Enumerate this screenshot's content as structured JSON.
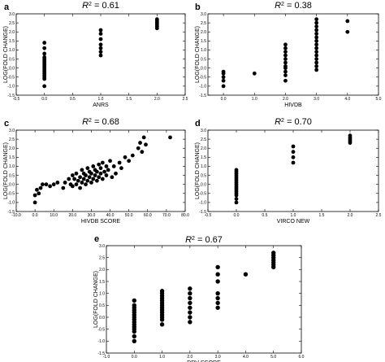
{
  "chart_data": [
    {
      "id": "a",
      "type": "scatter",
      "panel_label": "a",
      "title_prefix": "R",
      "title_exp": "2",
      "title_value": " = 0.61",
      "xlabel": "ANRS",
      "ylabel": "LOG(FOLD CHANGE)",
      "xlim": [
        -0.5,
        2.5
      ],
      "ylim": [
        -1.5,
        3.0
      ],
      "xticks": [
        -0.5,
        0.0,
        0.5,
        1.0,
        1.5,
        2.0,
        2.5
      ],
      "xtick_labels": [
        "-0.5",
        "0.0",
        "0.5",
        "1.0",
        "1.5",
        "2.0",
        "2.5"
      ],
      "yticks": [
        -1.5,
        -1.0,
        -0.5,
        0.0,
        0.5,
        1.0,
        1.5,
        2.0,
        2.5,
        3.0
      ],
      "ytick_labels": [
        "-1.5",
        "-1.0",
        "-0.5",
        "0.0",
        "0.5",
        "1.0",
        "1.5",
        "2.0",
        "2.5",
        "3.0"
      ],
      "points": [
        [
          0,
          -1.0
        ],
        [
          0,
          -0.6
        ],
        [
          0,
          -0.5
        ],
        [
          0,
          -0.4
        ],
        [
          0,
          -0.3
        ],
        [
          0,
          -0.2
        ],
        [
          0,
          -0.1
        ],
        [
          0,
          0.0
        ],
        [
          0,
          0.1
        ],
        [
          0,
          0.2
        ],
        [
          0,
          0.3
        ],
        [
          0,
          0.4
        ],
        [
          0,
          0.5
        ],
        [
          0,
          0.6
        ],
        [
          0,
          0.8
        ],
        [
          0,
          1.1
        ],
        [
          0,
          1.4
        ],
        [
          1,
          0.7
        ],
        [
          1,
          0.9
        ],
        [
          1,
          1.1
        ],
        [
          1,
          1.3
        ],
        [
          1,
          1.6
        ],
        [
          1,
          1.9
        ],
        [
          1,
          2.1
        ],
        [
          2,
          2.2
        ],
        [
          2,
          2.3
        ],
        [
          2,
          2.4
        ],
        [
          2,
          2.5
        ],
        [
          2,
          2.6
        ],
        [
          2,
          2.7
        ]
      ]
    },
    {
      "id": "b",
      "type": "scatter",
      "panel_label": "b",
      "title_prefix": "R",
      "title_exp": "2",
      "title_value": " = 0.38",
      "xlabel": "HIVDB",
      "ylabel": "LOG(FOLD CHANGE)",
      "xlim": [
        -0.5,
        5.0
      ],
      "ylim": [
        -1.5,
        3.0
      ],
      "xticks": [
        0.0,
        1.0,
        2.0,
        3.0,
        4.0,
        5.0
      ],
      "xtick_labels": [
        "0.0",
        "1.0",
        "2.0",
        "3.0",
        "4.0",
        "5.0"
      ],
      "yticks": [
        -1.5,
        -1.0,
        -0.5,
        0.0,
        0.5,
        1.0,
        1.5,
        2.0,
        2.5,
        3.0
      ],
      "ytick_labels": [
        "-1.5",
        "-1.0",
        "-0.5",
        "0.0",
        "0.5",
        "1.0",
        "1.5",
        "2.0",
        "2.5",
        "3.0"
      ],
      "points": [
        [
          0,
          -1.0
        ],
        [
          0,
          -0.7
        ],
        [
          0,
          -0.5
        ],
        [
          0,
          -0.3
        ],
        [
          0,
          -0.2
        ],
        [
          1,
          -0.3
        ],
        [
          2,
          -0.7
        ],
        [
          2,
          -0.4
        ],
        [
          2,
          -0.2
        ],
        [
          2,
          0.0
        ],
        [
          2,
          0.1
        ],
        [
          2,
          0.3
        ],
        [
          2,
          0.5
        ],
        [
          2,
          0.7
        ],
        [
          2,
          0.9
        ],
        [
          2,
          1.1
        ],
        [
          2,
          1.3
        ],
        [
          3,
          -0.1
        ],
        [
          3,
          0.1
        ],
        [
          3,
          0.3
        ],
        [
          3,
          0.5
        ],
        [
          3,
          0.7
        ],
        [
          3,
          0.9
        ],
        [
          3,
          1.1
        ],
        [
          3,
          1.3
        ],
        [
          3,
          1.5
        ],
        [
          3,
          1.7
        ],
        [
          3,
          1.9
        ],
        [
          3,
          2.1
        ],
        [
          3,
          2.3
        ],
        [
          3,
          2.5
        ],
        [
          3,
          2.7
        ],
        [
          4,
          2.0
        ],
        [
          4,
          2.6
        ]
      ]
    },
    {
      "id": "c",
      "type": "scatter",
      "panel_label": "c",
      "title_prefix": "R",
      "title_exp": "2",
      "title_value": " = 0.68",
      "xlabel": "HIVDB SCORE",
      "ylabel": "LOG(FOLD CHANGE)",
      "xlim": [
        -10.0,
        80.0
      ],
      "ylim": [
        -1.5,
        3.0
      ],
      "xticks": [
        -10.0,
        0.0,
        10.0,
        20.0,
        30.0,
        40.0,
        50.0,
        60.0,
        70.0,
        80.0
      ],
      "xtick_labels": [
        "-10.0",
        "0.0",
        "10.0",
        "20.0",
        "30.0",
        "40.0",
        "50.0",
        "60.0",
        "70.0",
        "80.0"
      ],
      "yticks": [
        -1.5,
        -1.0,
        -0.5,
        0.0,
        0.5,
        1.0,
        1.5,
        2.0,
        2.5,
        3.0
      ],
      "ytick_labels": [
        "-1.5",
        "-1.0",
        "-0.5",
        "0.0",
        "0.5",
        "1.0",
        "1.5",
        "2.0",
        "2.5",
        "3.0"
      ],
      "points": [
        [
          0,
          -1.0
        ],
        [
          0,
          -0.6
        ],
        [
          1,
          -0.3
        ],
        [
          2,
          -0.5
        ],
        [
          3,
          -0.2
        ],
        [
          4,
          0.0
        ],
        [
          6,
          0.0
        ],
        [
          8,
          -0.1
        ],
        [
          10,
          0.0
        ],
        [
          12,
          0.1
        ],
        [
          15,
          -0.2
        ],
        [
          16,
          0.1
        ],
        [
          18,
          0.3
        ],
        [
          19,
          0.0
        ],
        [
          20,
          -0.1
        ],
        [
          20,
          0.5
        ],
        [
          21,
          0.3
        ],
        [
          22,
          0.0
        ],
        [
          22,
          0.6
        ],
        [
          23,
          0.2
        ],
        [
          24,
          -0.2
        ],
        [
          24,
          0.4
        ],
        [
          25,
          0.1
        ],
        [
          25,
          0.8
        ],
        [
          26,
          0.3
        ],
        [
          26,
          0.6
        ],
        [
          27,
          0.0
        ],
        [
          27,
          0.5
        ],
        [
          28,
          0.2
        ],
        [
          28,
          0.9
        ],
        [
          29,
          0.4
        ],
        [
          29,
          0.7
        ],
        [
          30,
          0.1
        ],
        [
          30,
          0.6
        ],
        [
          31,
          0.3
        ],
        [
          31,
          1.0
        ],
        [
          32,
          0.5
        ],
        [
          32,
          0.8
        ],
        [
          33,
          0.2
        ],
        [
          33,
          0.7
        ],
        [
          34,
          0.4
        ],
        [
          34,
          1.1
        ],
        [
          35,
          0.6
        ],
        [
          35,
          0.9
        ],
        [
          36,
          0.3
        ],
        [
          36,
          1.2
        ],
        [
          37,
          0.7
        ],
        [
          38,
          0.5
        ],
        [
          38,
          1.0
        ],
        [
          39,
          0.8
        ],
        [
          40,
          1.3
        ],
        [
          41,
          0.4
        ],
        [
          42,
          1.0
        ],
        [
          43,
          0.6
        ],
        [
          45,
          1.2
        ],
        [
          46,
          0.9
        ],
        [
          48,
          1.5
        ],
        [
          50,
          1.3
        ],
        [
          52,
          1.6
        ],
        [
          55,
          2.0
        ],
        [
          56,
          2.3
        ],
        [
          57,
          1.8
        ],
        [
          58,
          2.6
        ],
        [
          59,
          2.2
        ],
        [
          72,
          2.6
        ]
      ]
    },
    {
      "id": "d",
      "type": "scatter",
      "panel_label": "d",
      "title_prefix": "R",
      "title_exp": "2",
      "title_value": " = 0.70",
      "xlabel": "VIRCO NEW",
      "ylabel": "LOG(FOLD CHANGE)",
      "xlim": [
        -0.5,
        2.5
      ],
      "ylim": [
        -1.5,
        3.0
      ],
      "xticks": [
        -0.5,
        0.0,
        0.5,
        1.0,
        1.5,
        2.0,
        2.5
      ],
      "xtick_labels": [
        "-0.5",
        "0.0",
        "0.5",
        "1.0",
        "1.5",
        "2.0",
        "2.5"
      ],
      "yticks": [
        -1.5,
        -1.0,
        -0.5,
        0.0,
        0.5,
        1.0,
        1.5,
        2.0,
        2.5,
        3.0
      ],
      "ytick_labels": [
        "-1.5",
        "-1.0",
        "-0.5",
        "0.0",
        "0.5",
        "1.0",
        "1.5",
        "2.0",
        "2.5",
        "3.0"
      ],
      "points": [
        [
          0,
          -1.0
        ],
        [
          0,
          -0.8
        ],
        [
          0,
          -0.6
        ],
        [
          0,
          -0.5
        ],
        [
          0,
          -0.4
        ],
        [
          0,
          -0.3
        ],
        [
          0,
          -0.2
        ],
        [
          0,
          -0.1
        ],
        [
          0,
          0.0
        ],
        [
          0,
          0.1
        ],
        [
          0,
          0.2
        ],
        [
          0,
          0.3
        ],
        [
          0,
          0.4
        ],
        [
          0,
          0.5
        ],
        [
          0,
          0.6
        ],
        [
          0,
          0.7
        ],
        [
          0,
          0.8
        ],
        [
          1,
          1.2
        ],
        [
          1,
          1.5
        ],
        [
          1,
          1.8
        ],
        [
          1,
          2.1
        ],
        [
          2,
          2.3
        ],
        [
          2,
          2.4
        ],
        [
          2,
          2.5
        ],
        [
          2,
          2.6
        ],
        [
          2,
          2.7
        ]
      ]
    },
    {
      "id": "e",
      "type": "scatter",
      "panel_label": "e",
      "title_prefix": "R",
      "title_exp": "2",
      "title_value": " = 0.67",
      "xlabel": "DRV SCORE",
      "ylabel": "LOG(FOLD CHANGE)",
      "xlim": [
        -1.0,
        6.0
      ],
      "ylim": [
        -1.5,
        3.0
      ],
      "xticks": [
        -1.0,
        0.0,
        1.0,
        2.0,
        3.0,
        4.0,
        5.0,
        6.0
      ],
      "xtick_labels": [
        "-1.0",
        "0.0",
        "1.0",
        "2.0",
        "3.0",
        "4.0",
        "5.0",
        "6.0"
      ],
      "yticks": [
        -1.5,
        -1.0,
        -0.5,
        0.0,
        0.5,
        1.0,
        1.5,
        2.0,
        2.5,
        3.0
      ],
      "ytick_labels": [
        "-1.5",
        "-1.0",
        "-0.5",
        "0.0",
        "0.5",
        "1.0",
        "1.5",
        "2.0",
        "2.5",
        "3.0"
      ],
      "points": [
        [
          0,
          -1.0
        ],
        [
          0,
          -0.8
        ],
        [
          0,
          -0.6
        ],
        [
          0,
          -0.5
        ],
        [
          0,
          -0.4
        ],
        [
          0,
          -0.3
        ],
        [
          0,
          -0.2
        ],
        [
          0,
          -0.1
        ],
        [
          0,
          0.0
        ],
        [
          0,
          0.1
        ],
        [
          0,
          0.2
        ],
        [
          0,
          0.3
        ],
        [
          0,
          0.4
        ],
        [
          0,
          0.5
        ],
        [
          0,
          0.7
        ],
        [
          1,
          -0.3
        ],
        [
          1,
          -0.1
        ],
        [
          1,
          0.0
        ],
        [
          1,
          0.1
        ],
        [
          1,
          0.2
        ],
        [
          1,
          0.3
        ],
        [
          1,
          0.4
        ],
        [
          1,
          0.5
        ],
        [
          1,
          0.6
        ],
        [
          1,
          0.7
        ],
        [
          1,
          0.8
        ],
        [
          1,
          0.9
        ],
        [
          1,
          1.0
        ],
        [
          1,
          1.1
        ],
        [
          2,
          -0.2
        ],
        [
          2,
          0.0
        ],
        [
          2,
          0.2
        ],
        [
          2,
          0.4
        ],
        [
          2,
          0.6
        ],
        [
          2,
          0.8
        ],
        [
          2,
          1.0
        ],
        [
          2,
          1.2
        ],
        [
          3,
          0.4
        ],
        [
          3,
          0.6
        ],
        [
          3,
          0.8
        ],
        [
          3,
          1.0
        ],
        [
          3,
          1.5
        ],
        [
          3,
          1.8
        ],
        [
          3,
          2.1
        ],
        [
          4,
          1.8
        ],
        [
          5,
          2.1
        ],
        [
          5,
          2.2
        ],
        [
          5,
          2.3
        ],
        [
          5,
          2.4
        ],
        [
          5,
          2.5
        ],
        [
          5,
          2.6
        ],
        [
          5,
          2.7
        ]
      ]
    }
  ]
}
